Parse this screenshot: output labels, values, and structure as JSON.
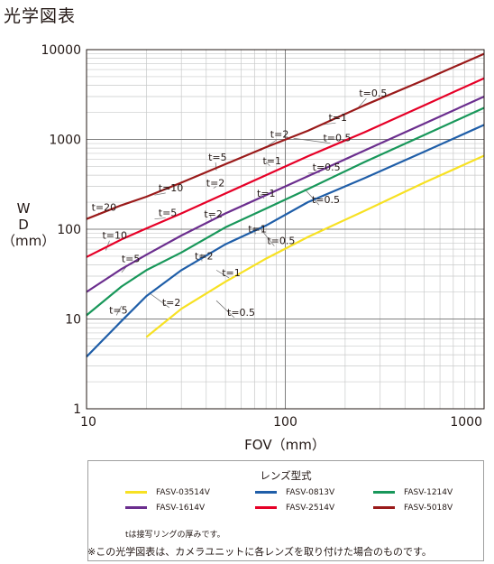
{
  "heading": "光学図表",
  "chart_data": {
    "type": "line",
    "title": "光学図表",
    "xlabel": "FOV（mm）",
    "ylabel_lines": [
      "W",
      "D",
      "（mm）"
    ],
    "x_scale": "log",
    "y_scale": "log",
    "xlim": [
      10,
      1000
    ],
    "ylim": [
      1,
      10000
    ],
    "x_ticks": [
      10,
      100,
      1000
    ],
    "x_tick_labels": [
      "10",
      "100",
      "1000"
    ],
    "y_ticks": [
      1,
      10,
      100,
      1000,
      10000
    ],
    "y_tick_labels": [
      "1",
      "10",
      "100",
      "1000",
      "10000"
    ],
    "grid": true,
    "series": [
      {
        "name": "FASV-03514V",
        "color": "#f7e123",
        "x": [
          20,
          30,
          50,
          80,
          130,
          250,
          500,
          1000
        ],
        "y": [
          6.3,
          13,
          26,
          47,
          82,
          160,
          330,
          660
        ]
      },
      {
        "name": "FASV-0813V",
        "color": "#1f5ea8",
        "x": [
          10,
          15,
          20,
          30,
          50,
          80,
          130,
          250,
          500,
          1000
        ],
        "y": [
          3.8,
          9.5,
          18,
          35,
          68,
          110,
          200,
          370,
          730,
          1450
        ]
      },
      {
        "name": "FASV-1214V",
        "color": "#18975a",
        "x": [
          10,
          15,
          20,
          30,
          50,
          80,
          130,
          250,
          500,
          1000
        ],
        "y": [
          11,
          23,
          35,
          55,
          105,
          170,
          280,
          560,
          1120,
          2250
        ]
      },
      {
        "name": "FASV-1614V",
        "color": "#6b2e8e",
        "x": [
          10,
          15,
          20,
          30,
          50,
          80,
          130,
          250,
          500,
          1000
        ],
        "y": [
          20,
          36,
          52,
          85,
          150,
          240,
          390,
          750,
          1500,
          3000
        ]
      },
      {
        "name": "FASV-2514V",
        "color": "#e60027",
        "x": [
          10,
          15,
          20,
          30,
          50,
          80,
          130,
          250,
          500,
          1000
        ],
        "y": [
          49,
          77,
          102,
          150,
          250,
          400,
          650,
          1200,
          2400,
          4800
        ]
      },
      {
        "name": "FASV-5018V",
        "color": "#9a1a1a",
        "x": [
          10,
          15,
          20,
          30,
          50,
          80,
          130,
          250,
          500,
          1000
        ],
        "y": [
          130,
          185,
          230,
          330,
          530,
          820,
          1250,
          2400,
          4600,
          9000
        ]
      }
    ],
    "annotations": [
      {
        "text": "t=0.5",
        "x": 235,
        "y": 3000,
        "lx": 230,
        "ly": 2200
      },
      {
        "text": "t=1",
        "x": 165,
        "y": 1600,
        "lx": 150,
        "ly": 1450
      },
      {
        "text": "t=2",
        "x": 84,
        "y": 1050,
        "lx": 75,
        "ly": 750
      },
      {
        "text": "t=5",
        "x": 41,
        "y": 580,
        "lx": 45,
        "ly": 450
      },
      {
        "text": "t=10",
        "x": 23,
        "y": 265,
        "lx": 22,
        "ly": 240
      },
      {
        "text": "t=20",
        "x": 10.6,
        "y": 160,
        "lx": 11.5,
        "ly": 145
      },
      {
        "text": "t=0.5",
        "x": 155,
        "y": 950,
        "lx": 110,
        "ly": 1030
      },
      {
        "text": "t=1",
        "x": 77,
        "y": 530,
        "lx": 80,
        "ly": 560
      },
      {
        "text": "t=2",
        "x": 40,
        "y": 300,
        "lx": 45,
        "ly": 300
      },
      {
        "text": "t=5",
        "x": 23,
        "y": 140,
        "lx": 22,
        "ly": 130
      },
      {
        "text": "t=10",
        "x": 12,
        "y": 78,
        "lx": 12.5,
        "ly": 58
      },
      {
        "text": "t=0.5",
        "x": 137,
        "y": 450,
        "lx": 130,
        "ly": 420
      },
      {
        "text": "t=1",
        "x": 72,
        "y": 230,
        "lx": 75,
        "ly": 245
      },
      {
        "text": "t=2",
        "x": 39,
        "y": 135,
        "lx": 42,
        "ly": 145
      },
      {
        "text": "t=0.5",
        "x": 136,
        "y": 195,
        "lx": 125,
        "ly": 280
      },
      {
        "text": "t=1",
        "x": 65,
        "y": 92,
        "lx": 70,
        "ly": 105
      },
      {
        "text": "t=5",
        "x": 15,
        "y": 43,
        "lx": 15,
        "ly": 33
      },
      {
        "text": "t=0.5",
        "x": 81,
        "y": 68,
        "lx": 74,
        "ly": 105
      },
      {
        "text": "t=2",
        "x": 35,
        "y": 46,
        "lx": 38,
        "ly": 53
      },
      {
        "text": "t=1",
        "x": 48,
        "y": 30,
        "lx": 45,
        "ly": 35
      },
      {
        "text": "t=5",
        "x": 13,
        "y": 11.5,
        "lx": 15,
        "ly": 14
      },
      {
        "text": "t=2",
        "x": 24,
        "y": 14,
        "lx": 21,
        "ly": 19
      },
      {
        "text": "t=0.5",
        "x": 51,
        "y": 10.8,
        "lx": 45,
        "ly": 16
      }
    ]
  },
  "legend": {
    "title": "レンズ型式",
    "items": [
      {
        "label": "FASV-03514V",
        "color": "#f7e123"
      },
      {
        "label": "FASV-0813V",
        "color": "#1f5ea8"
      },
      {
        "label": "FASV-1214V",
        "color": "#18975a"
      },
      {
        "label": "FASV-1614V",
        "color": "#6b2e8e"
      },
      {
        "label": "FASV-2514V",
        "color": "#e60027"
      },
      {
        "label": "FASV-5018V",
        "color": "#9a1a1a"
      }
    ],
    "note": "tは接写リングの厚みです。"
  },
  "footnote": "※この光学図表は、カメラユニットに各レンズを取り付けた場合のものです。",
  "colors": {
    "axis": "#231815",
    "grid_major": "#808080",
    "grid_minor": "#c9caca",
    "leader": "#6f6f6f"
  }
}
